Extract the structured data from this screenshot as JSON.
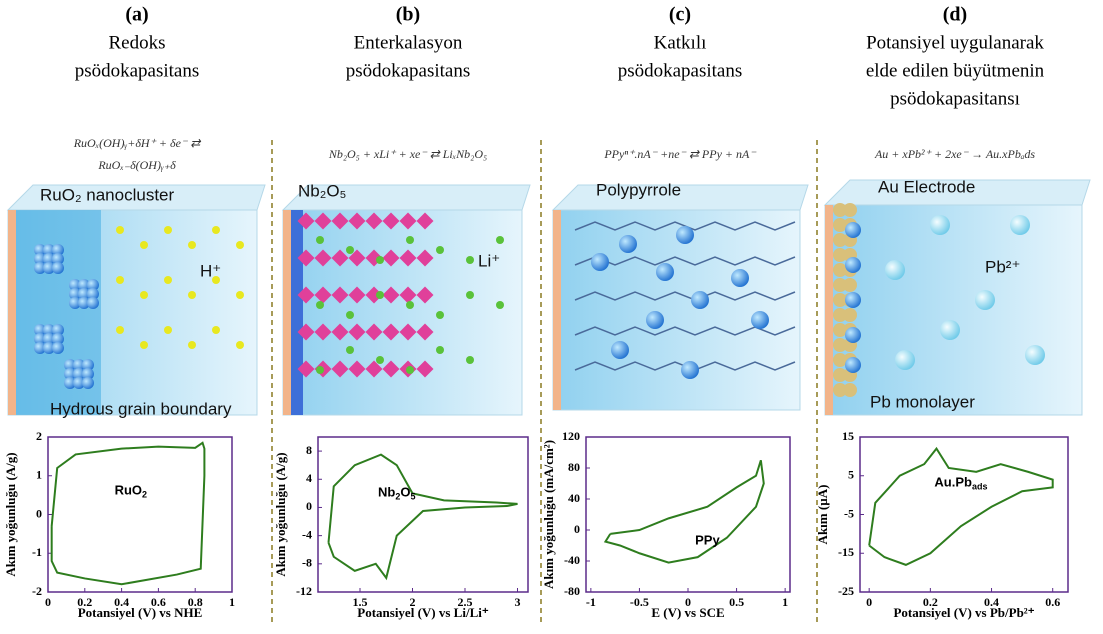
{
  "panels": [
    {
      "letter": "(a)",
      "title": [
        "Redoks",
        "psödokapasitans"
      ],
      "equation": [
        "RuOₓ(OH)ᵧ+δH⁺ + δe⁻ ⇄",
        "RuOₓ₋δ(OH)ᵧ₊δ"
      ],
      "labels": [
        "RuO₂ nanocluster",
        "H⁺",
        "Hydrous grain boundary"
      ]
    },
    {
      "letter": "(b)",
      "title": [
        "Enterkalasyon",
        "psödokapasitans"
      ],
      "equation": [
        "Nb₂O₅ + xLi⁺ + xe⁻ ⇄ LiₓNb₂O₅"
      ],
      "labels": [
        "Nb₂O₅",
        "Li⁺"
      ]
    },
    {
      "letter": "(c)",
      "title": [
        "Katkılı",
        "psödokapasitans"
      ],
      "equation": [
        "PPyⁿ⁺.nA⁻ +ne⁻ ⇄ PPy + nA⁻"
      ],
      "labels": [
        "Polypyrrole"
      ]
    },
    {
      "letter": "(d)",
      "title": [
        "Potansiyel uygulanarak",
        "elde edilen büyütmenin",
        "psödokapasitansı"
      ],
      "equation": [
        "Au + xPb²⁺ + 2xe⁻ → Au.xPbₐds"
      ],
      "labels": [
        "Au Electrode",
        "Pb²⁺",
        "Pb monolayer"
      ]
    }
  ],
  "chart_data": [
    {
      "type": "line",
      "ylabel": "Akım yoğunluğu (A/g)",
      "xlabel": "Potansiyel (V) vs NHE",
      "curve_label": [
        "RuO",
        "2"
      ],
      "x": [
        0.02,
        0.05,
        0.15,
        0.4,
        0.6,
        0.8,
        0.84,
        0.85,
        0.85,
        0.83,
        0.7,
        0.4,
        0.2,
        0.05,
        0.02,
        0.02
      ],
      "series": [
        {
          "color": "#2e7d1e",
          "values": [
            -0.3,
            1.2,
            1.55,
            1.7,
            1.75,
            1.72,
            1.85,
            1.7,
            1.0,
            -1.4,
            -1.55,
            -1.8,
            -1.65,
            -1.5,
            -1.2,
            -0.3
          ]
        }
      ],
      "xlim": [
        0,
        1
      ],
      "xticks": [
        0,
        0.2,
        0.4,
        0.6,
        0.8,
        1
      ],
      "ylim": [
        -2,
        2
      ],
      "yticks": [
        2,
        1,
        0,
        -1,
        -2
      ]
    },
    {
      "type": "line",
      "ylabel": "Akım yoğunluğu (A/g)",
      "xlabel": "Potansiyel (V) vs Li/Li⁺",
      "curve_label": [
        "Nb",
        "2",
        "O",
        "5"
      ],
      "x": [
        1.2,
        1.25,
        1.45,
        1.7,
        1.85,
        2.0,
        2.3,
        2.8,
        3.0,
        2.9,
        2.5,
        2.1,
        1.85,
        1.75,
        1.65,
        1.45,
        1.25,
        1.2
      ],
      "series": [
        {
          "color": "#2e7d1e",
          "values": [
            -5,
            3,
            6,
            7.5,
            6,
            2,
            1,
            0.7,
            0.5,
            0.2,
            0,
            -0.5,
            -4,
            -10,
            -8,
            -9,
            -7,
            -5
          ]
        }
      ],
      "xlim": [
        1.1,
        3.1
      ],
      "xticks": [
        1.5,
        2,
        2.5,
        3
      ],
      "ylim": [
        -12,
        10
      ],
      "yticks": [
        8,
        4,
        0,
        -4,
        -8,
        -12
      ]
    },
    {
      "type": "line",
      "ylabel": "Akım yoğunluğu (mA/cm²)",
      "xlabel": "E (V) vs SCE",
      "curve_label": [
        "PPy"
      ],
      "x": [
        -0.8,
        -0.5,
        -0.2,
        0.2,
        0.5,
        0.7,
        0.75,
        0.78,
        0.7,
        0.4,
        0.1,
        -0.2,
        -0.5,
        -0.7,
        -0.85,
        -0.8
      ],
      "series": [
        {
          "color": "#2e7d1e",
          "values": [
            -5,
            0,
            15,
            30,
            55,
            70,
            90,
            60,
            30,
            -10,
            -35,
            -42,
            -30,
            -20,
            -15,
            -5
          ]
        }
      ],
      "xlim": [
        -1.05,
        1.05
      ],
      "xticks": [
        -1,
        -0.5,
        0,
        0.5,
        1
      ],
      "ylim": [
        -80,
        120
      ],
      "yticks": [
        120,
        80,
        40,
        0,
        -40,
        -80
      ]
    },
    {
      "type": "line",
      "ylabel": "Akım (µA)",
      "xlabel": "Potansiyel (V) vs Pb/Pb²⁺",
      "curve_label": [
        "Au.Pb",
        "ads"
      ],
      "x": [
        0,
        0.02,
        0.1,
        0.18,
        0.22,
        0.26,
        0.35,
        0.43,
        0.52,
        0.6,
        0.6,
        0.5,
        0.4,
        0.3,
        0.2,
        0.12,
        0.05,
        0
      ],
      "series": [
        {
          "color": "#2e7d1e",
          "values": [
            -13,
            -2,
            5,
            8,
            12,
            7,
            6,
            8,
            6,
            4,
            2,
            1,
            -3,
            -8,
            -15,
            -18,
            -16,
            -13
          ]
        }
      ],
      "xlim": [
        -0.03,
        0.65
      ],
      "xticks": [
        0,
        0.2,
        0.4,
        0.6
      ],
      "ylim": [
        -25,
        15
      ],
      "yticks": [
        15,
        5,
        -5,
        -15,
        -25
      ]
    }
  ]
}
